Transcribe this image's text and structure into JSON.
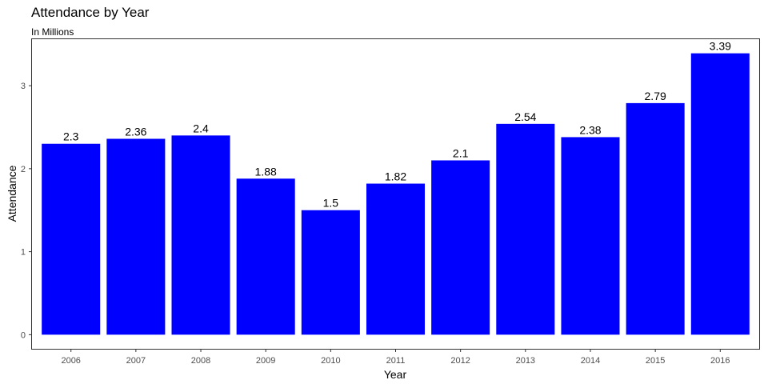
{
  "chart_data": {
    "type": "bar",
    "title": "Attendance by Year",
    "subtitle": "In Millions",
    "xlabel": "Year",
    "ylabel": "Attendance",
    "categories": [
      "2006",
      "2007",
      "2008",
      "2009",
      "2010",
      "2011",
      "2012",
      "2013",
      "2014",
      "2015",
      "2016"
    ],
    "values": [
      2.3,
      2.36,
      2.4,
      1.88,
      1.5,
      1.82,
      2.1,
      2.54,
      2.38,
      2.79,
      3.39
    ],
    "data_labels": [
      "2.3",
      "2.36",
      "2.4",
      "1.88",
      "1.5",
      "1.82",
      "2.1",
      "2.54",
      "2.38",
      "2.79",
      "3.39"
    ],
    "y_ticks": [
      0,
      1,
      2,
      3
    ],
    "ylim": [
      -0.17,
      3.56
    ],
    "bar_color": "#0000ff",
    "grid": false,
    "legend": "none"
  }
}
